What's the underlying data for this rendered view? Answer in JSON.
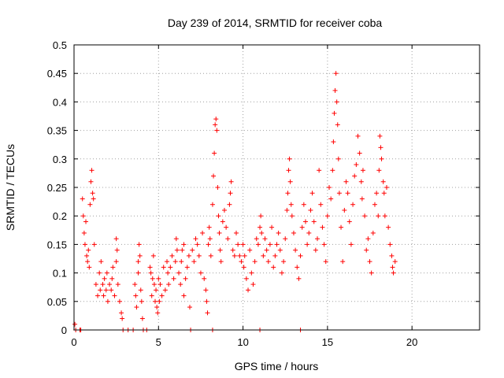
{
  "chart_data": {
    "type": "scatter",
    "title": "Day 239 of 2014, SRMTID for receiver coba",
    "xlabel": "GPS time / hours",
    "ylabel": "SRMTID / TECUs",
    "xlim": [
      0,
      24
    ],
    "ylim": [
      0,
      0.5
    ],
    "xticks": [
      "0",
      "5",
      "10",
      "15",
      "20"
    ],
    "yticks": [
      "0",
      "0.05",
      "0.1",
      "0.15",
      "0.2",
      "0.25",
      "0.3",
      "0.35",
      "0.4",
      "0.45",
      "0.5"
    ],
    "grid": true,
    "marker": "+",
    "series_color": "#ff0000",
    "series": [
      {
        "name": "SRMTID",
        "points": [
          [
            0.05,
            0.01
          ],
          [
            0.1,
            0.0
          ],
          [
            0.35,
            0.0
          ],
          [
            0.4,
            0.0
          ],
          [
            0.5,
            0.23
          ],
          [
            0.55,
            0.2
          ],
          [
            0.6,
            0.17
          ],
          [
            0.65,
            0.15
          ],
          [
            0.7,
            0.19
          ],
          [
            0.75,
            0.13
          ],
          [
            0.8,
            0.12
          ],
          [
            0.85,
            0.14
          ],
          [
            0.9,
            0.11
          ],
          [
            0.95,
            0.22
          ],
          [
            1.0,
            0.26
          ],
          [
            1.05,
            0.28
          ],
          [
            1.1,
            0.24
          ],
          [
            1.15,
            0.23
          ],
          [
            1.2,
            0.15
          ],
          [
            1.3,
            0.08
          ],
          [
            1.4,
            0.06
          ],
          [
            1.5,
            0.1
          ],
          [
            1.55,
            0.07
          ],
          [
            1.6,
            0.12
          ],
          [
            1.7,
            0.08
          ],
          [
            1.75,
            0.06
          ],
          [
            1.8,
            0.09
          ],
          [
            1.9,
            0.07
          ],
          [
            1.95,
            0.1
          ],
          [
            2.0,
            0.05
          ],
          [
            2.1,
            0.08
          ],
          [
            2.2,
            0.07
          ],
          [
            2.25,
            0.09
          ],
          [
            2.3,
            0.11
          ],
          [
            2.4,
            0.06
          ],
          [
            2.5,
            0.16
          ],
          [
            2.55,
            0.14
          ],
          [
            2.6,
            0.08
          ],
          [
            2.7,
            0.05
          ],
          [
            2.8,
            0.03
          ],
          [
            2.85,
            0.02
          ],
          [
            2.9,
            0.0
          ],
          [
            3.2,
            0.0
          ],
          [
            3.5,
            0.0
          ],
          [
            3.6,
            0.08
          ],
          [
            3.65,
            0.06
          ],
          [
            3.7,
            0.04
          ],
          [
            3.8,
            0.1
          ],
          [
            3.85,
            0.15
          ],
          [
            3.9,
            0.13
          ],
          [
            3.95,
            0.07
          ],
          [
            4.0,
            0.05
          ],
          [
            4.05,
            0.02
          ],
          [
            4.1,
            0.0
          ],
          [
            4.3,
            0.0
          ],
          [
            4.5,
            0.11
          ],
          [
            4.55,
            0.1
          ],
          [
            4.6,
            0.06
          ],
          [
            4.65,
            0.09
          ],
          [
            4.7,
            0.13
          ],
          [
            4.75,
            0.08
          ],
          [
            4.8,
            0.05
          ],
          [
            4.85,
            0.07
          ],
          [
            4.9,
            0.04
          ],
          [
            4.95,
            0.03
          ],
          [
            5.0,
            0.09
          ],
          [
            5.05,
            0.05
          ],
          [
            5.1,
            0.08
          ],
          [
            5.2,
            0.06
          ],
          [
            5.3,
            0.11
          ],
          [
            5.4,
            0.07
          ],
          [
            5.5,
            0.12
          ],
          [
            5.55,
            0.1
          ],
          [
            5.6,
            0.08
          ],
          [
            5.7,
            0.11
          ],
          [
            5.8,
            0.13
          ],
          [
            5.9,
            0.09
          ],
          [
            6.0,
            0.12
          ],
          [
            6.05,
            0.16
          ],
          [
            6.1,
            0.14
          ],
          [
            6.2,
            0.1
          ],
          [
            6.3,
            0.08
          ],
          [
            6.35,
            0.12
          ],
          [
            6.4,
            0.14
          ],
          [
            6.5,
            0.06
          ],
          [
            6.6,
            0.09
          ],
          [
            6.7,
            0.11
          ],
          [
            6.8,
            0.13
          ],
          [
            6.85,
            0.04
          ],
          [
            6.9,
            0.0
          ],
          [
            7.0,
            0.14
          ],
          [
            7.1,
            0.12
          ],
          [
            7.2,
            0.16
          ],
          [
            7.3,
            0.15
          ],
          [
            7.4,
            0.13
          ],
          [
            7.5,
            0.1
          ],
          [
            7.6,
            0.17
          ],
          [
            7.7,
            0.09
          ],
          [
            7.8,
            0.07
          ],
          [
            7.85,
            0.05
          ],
          [
            7.9,
            0.03
          ],
          [
            7.95,
            0.15
          ],
          [
            8.0,
            0.18
          ],
          [
            8.05,
            0.16
          ],
          [
            8.1,
            0.13
          ],
          [
            8.2,
            0.22
          ],
          [
            8.25,
            0.27
          ],
          [
            8.3,
            0.31
          ],
          [
            8.35,
            0.36
          ],
          [
            8.4,
            0.37
          ],
          [
            8.45,
            0.35
          ],
          [
            8.5,
            0.25
          ],
          [
            8.55,
            0.2
          ],
          [
            8.6,
            0.17
          ],
          [
            8.65,
            0.14
          ],
          [
            8.7,
            0.12
          ],
          [
            8.8,
            0.19
          ],
          [
            8.9,
            0.21
          ],
          [
            9.0,
            0.18
          ],
          [
            9.1,
            0.16
          ],
          [
            9.2,
            0.22
          ],
          [
            9.25,
            0.24
          ],
          [
            9.3,
            0.26
          ],
          [
            9.4,
            0.14
          ],
          [
            9.5,
            0.13
          ],
          [
            9.6,
            0.17
          ],
          [
            9.7,
            0.15
          ],
          [
            9.8,
            0.13
          ],
          [
            9.9,
            0.12
          ],
          [
            10.0,
            0.15
          ],
          [
            10.05,
            0.11
          ],
          [
            10.1,
            0.13
          ],
          [
            10.2,
            0.09
          ],
          [
            10.3,
            0.07
          ],
          [
            10.4,
            0.14
          ],
          [
            10.5,
            0.1
          ],
          [
            10.6,
            0.08
          ],
          [
            10.7,
            0.12
          ],
          [
            10.8,
            0.16
          ],
          [
            10.9,
            0.15
          ],
          [
            11.0,
            0.18
          ],
          [
            11.05,
            0.2
          ],
          [
            11.1,
            0.17
          ],
          [
            11.2,
            0.13
          ],
          [
            11.3,
            0.16
          ],
          [
            11.4,
            0.14
          ],
          [
            11.5,
            0.12
          ],
          [
            11.6,
            0.15
          ],
          [
            11.7,
            0.18
          ],
          [
            11.8,
            0.11
          ],
          [
            11.9,
            0.13
          ],
          [
            12.0,
            0.15
          ],
          [
            12.1,
            0.17
          ],
          [
            12.2,
            0.14
          ],
          [
            12.3,
            0.1
          ],
          [
            12.4,
            0.12
          ],
          [
            12.5,
            0.16
          ],
          [
            12.6,
            0.21
          ],
          [
            12.65,
            0.24
          ],
          [
            12.7,
            0.28
          ],
          [
            12.75,
            0.3
          ],
          [
            12.8,
            0.26
          ],
          [
            12.85,
            0.22
          ],
          [
            12.9,
            0.2
          ],
          [
            13.0,
            0.17
          ],
          [
            13.1,
            0.14
          ],
          [
            13.2,
            0.11
          ],
          [
            13.3,
            0.09
          ],
          [
            13.4,
            0.13
          ],
          [
            13.5,
            0.18
          ],
          [
            13.6,
            0.22
          ],
          [
            13.7,
            0.19
          ],
          [
            13.8,
            0.15
          ],
          [
            13.9,
            0.17
          ],
          [
            14.0,
            0.21
          ],
          [
            14.1,
            0.24
          ],
          [
            14.2,
            0.19
          ],
          [
            14.3,
            0.14
          ],
          [
            14.4,
            0.16
          ],
          [
            14.5,
            0.28
          ],
          [
            14.6,
            0.22
          ],
          [
            14.7,
            0.18
          ],
          [
            14.8,
            0.15
          ],
          [
            14.9,
            0.12
          ],
          [
            15.0,
            0.2
          ],
          [
            15.1,
            0.25
          ],
          [
            15.2,
            0.23
          ],
          [
            15.3,
            0.28
          ],
          [
            15.35,
            0.33
          ],
          [
            15.4,
            0.38
          ],
          [
            15.45,
            0.42
          ],
          [
            15.5,
            0.45
          ],
          [
            15.55,
            0.4
          ],
          [
            15.6,
            0.36
          ],
          [
            15.65,
            0.3
          ],
          [
            15.7,
            0.24
          ],
          [
            15.8,
            0.18
          ],
          [
            15.9,
            0.12
          ],
          [
            16.0,
            0.21
          ],
          [
            16.1,
            0.26
          ],
          [
            16.2,
            0.24
          ],
          [
            16.3,
            0.19
          ],
          [
            16.4,
            0.15
          ],
          [
            16.5,
            0.22
          ],
          [
            16.6,
            0.27
          ],
          [
            16.7,
            0.29
          ],
          [
            16.8,
            0.34
          ],
          [
            16.9,
            0.31
          ],
          [
            17.0,
            0.26
          ],
          [
            17.05,
            0.23
          ],
          [
            17.1,
            0.28
          ],
          [
            17.2,
            0.2
          ],
          [
            17.3,
            0.14
          ],
          [
            17.4,
            0.16
          ],
          [
            17.5,
            0.12
          ],
          [
            17.6,
            0.1
          ],
          [
            17.7,
            0.17
          ],
          [
            17.8,
            0.22
          ],
          [
            17.9,
            0.24
          ],
          [
            18.0,
            0.2
          ],
          [
            18.05,
            0.28
          ],
          [
            18.1,
            0.34
          ],
          [
            18.15,
            0.32
          ],
          [
            18.2,
            0.3
          ],
          [
            18.3,
            0.26
          ],
          [
            18.35,
            0.24
          ],
          [
            18.4,
            0.2
          ],
          [
            18.5,
            0.25
          ],
          [
            18.6,
            0.18
          ],
          [
            18.7,
            0.15
          ],
          [
            18.8,
            0.13
          ],
          [
            18.85,
            0.11
          ],
          [
            18.9,
            0.1
          ],
          [
            19.0,
            0.12
          ],
          [
            11.0,
            0.0
          ],
          [
            13.4,
            0.0
          ],
          [
            8.2,
            0.0
          ],
          [
            2.5,
            0.12
          ],
          [
            3.8,
            0.12
          ],
          [
            6.5,
            0.15
          ]
        ]
      }
    ]
  }
}
